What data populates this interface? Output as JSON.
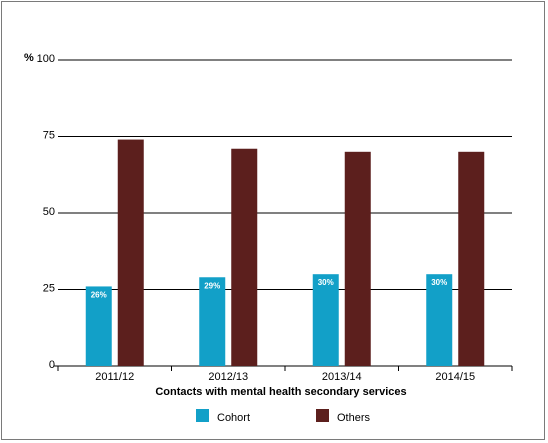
{
  "chart_data": {
    "type": "bar",
    "title": "",
    "unit_label": "%",
    "xlabel": "Contacts with mental health secondary services",
    "ylabel": "",
    "ylim": [
      0,
      100
    ],
    "yticks": [
      0,
      25,
      50,
      75,
      100
    ],
    "grid": true,
    "legend_position": "bottom",
    "categories": [
      "2011/12",
      "2012/13",
      "2013/14",
      "2014/15"
    ],
    "series": [
      {
        "name": "Cohort",
        "color": "#12a0c8",
        "values": [
          26,
          29,
          30,
          30
        ],
        "labels": [
          "26%",
          "29%",
          "30%",
          "30%"
        ]
      },
      {
        "name": "Others",
        "color": "#5c1f1d",
        "values": [
          74,
          71,
          70,
          70
        ]
      }
    ]
  }
}
